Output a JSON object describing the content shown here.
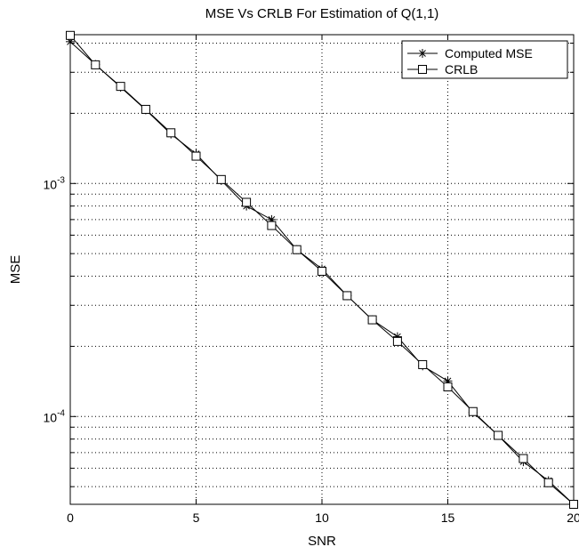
{
  "chart_data": {
    "type": "line",
    "title": "MSE Vs CRLB For Estimation of Q(1,1)",
    "xlabel": "SNR",
    "ylabel": "MSE",
    "x_scale": "linear",
    "y_scale": "log",
    "xlim": [
      0,
      20
    ],
    "ylim": [
      4.2e-05,
      0.00435
    ],
    "grid": true,
    "grid_style": "dotted",
    "legend_position": "top-right",
    "x_ticks": [
      0,
      5,
      10,
      15,
      20
    ],
    "x_tick_labels": [
      "0",
      "5",
      "10",
      "15",
      "20"
    ],
    "y_major_ticks": [
      0.001,
      0.0001
    ],
    "y_tick_labels": [
      {
        "base": "10",
        "exp": "-3"
      },
      {
        "base": "10",
        "exp": "-4"
      }
    ],
    "x": [
      0,
      1,
      2,
      3,
      4,
      5,
      6,
      7,
      8,
      9,
      10,
      11,
      12,
      13,
      14,
      15,
      16,
      17,
      18,
      19,
      20
    ],
    "series": [
      {
        "name": "Computed MSE",
        "marker": "asterisk",
        "color": "#000000",
        "values": [
          0.00406,
          0.00324,
          0.00259,
          0.00207,
          0.00163,
          0.00134,
          0.00103,
          0.0008,
          0.0007,
          0.00052,
          0.00043,
          0.00033,
          0.00026,
          0.00022,
          0.000165,
          0.000142,
          0.000104,
          8.3e-05,
          6.4e-05,
          5.3e-05,
          4.2e-05
        ]
      },
      {
        "name": "CRLB",
        "marker": "square",
        "color": "#000000",
        "values": [
          0.00432,
          0.00323,
          0.00261,
          0.00208,
          0.00165,
          0.00131,
          0.00104,
          0.00083,
          0.00066,
          0.00052,
          0.00042,
          0.00033,
          0.00026,
          0.00021,
          0.000167,
          0.000134,
          0.000105,
          8.3e-05,
          6.6e-05,
          5.2e-05,
          4.2e-05
        ]
      }
    ]
  }
}
